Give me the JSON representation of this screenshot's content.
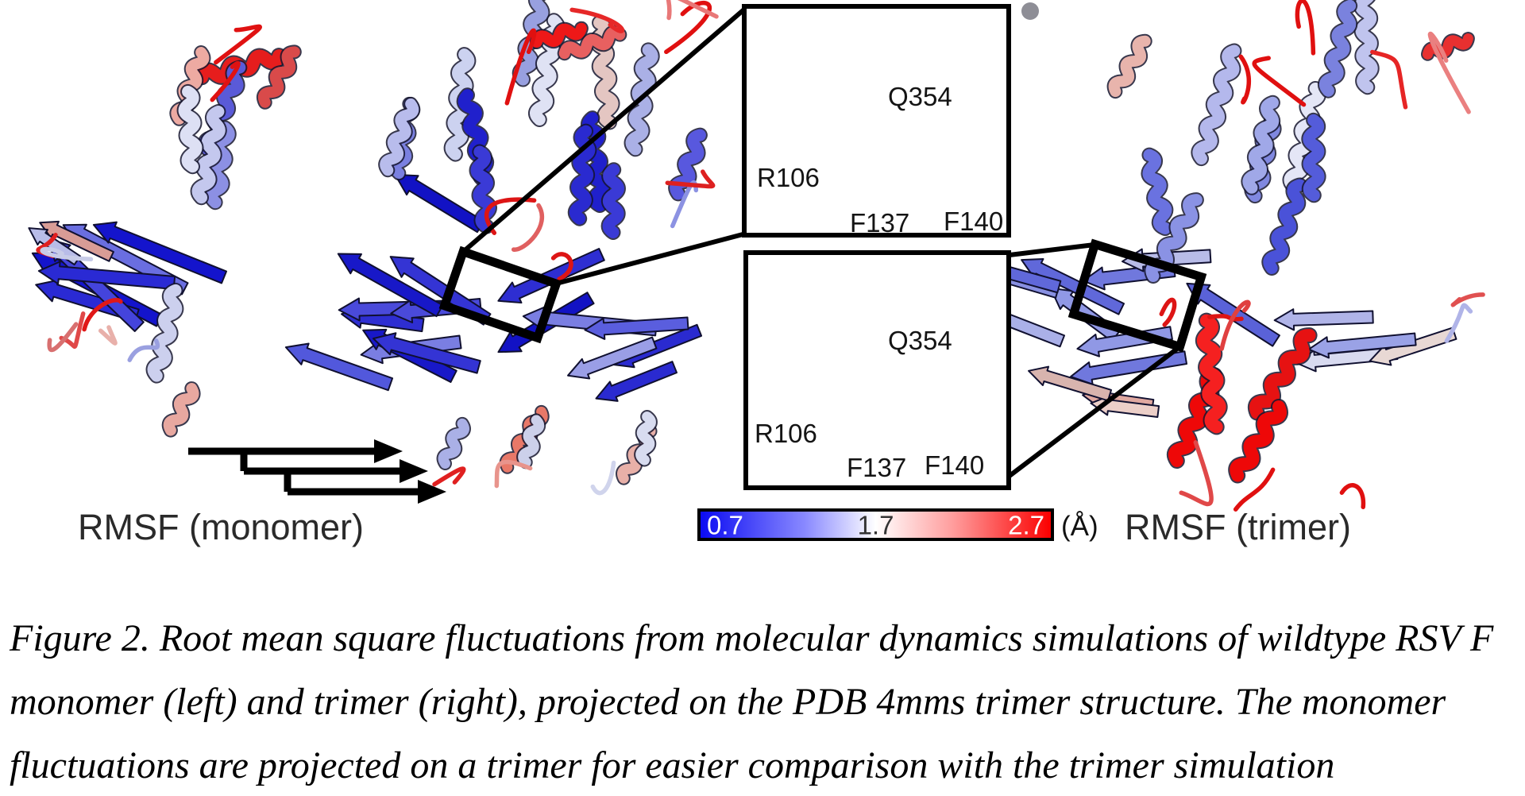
{
  "figure": {
    "monomer_label": "RMSF (monomer)",
    "trimer_label": "RMSF (trimer)",
    "colorbar": {
      "min": "0.7",
      "mid": "1.7",
      "max": "2.7",
      "unit": "(Å)",
      "min_color": "#0b0bf2",
      "mid_color": "#ffffff",
      "max_color": "#fb0000"
    },
    "insets": {
      "top": {
        "q354": "Q354",
        "r106": "R106",
        "f137": "F137",
        "f140": "F140"
      },
      "bottom": {
        "q354": "Q354",
        "r106": "R106",
        "f137": "F137",
        "f140": "F140"
      }
    }
  },
  "caption": {
    "line1": "Figure 2. Root mean square fluctuations from molecular dynamics simulations of wildtype RSV F",
    "line2": "monomer (left) and trimer (right), projected on the PDB 4mms trimer structure. The monomer",
    "line3": "fluctuations are projected on a trimer for easier comparison with the trimer simulation"
  }
}
